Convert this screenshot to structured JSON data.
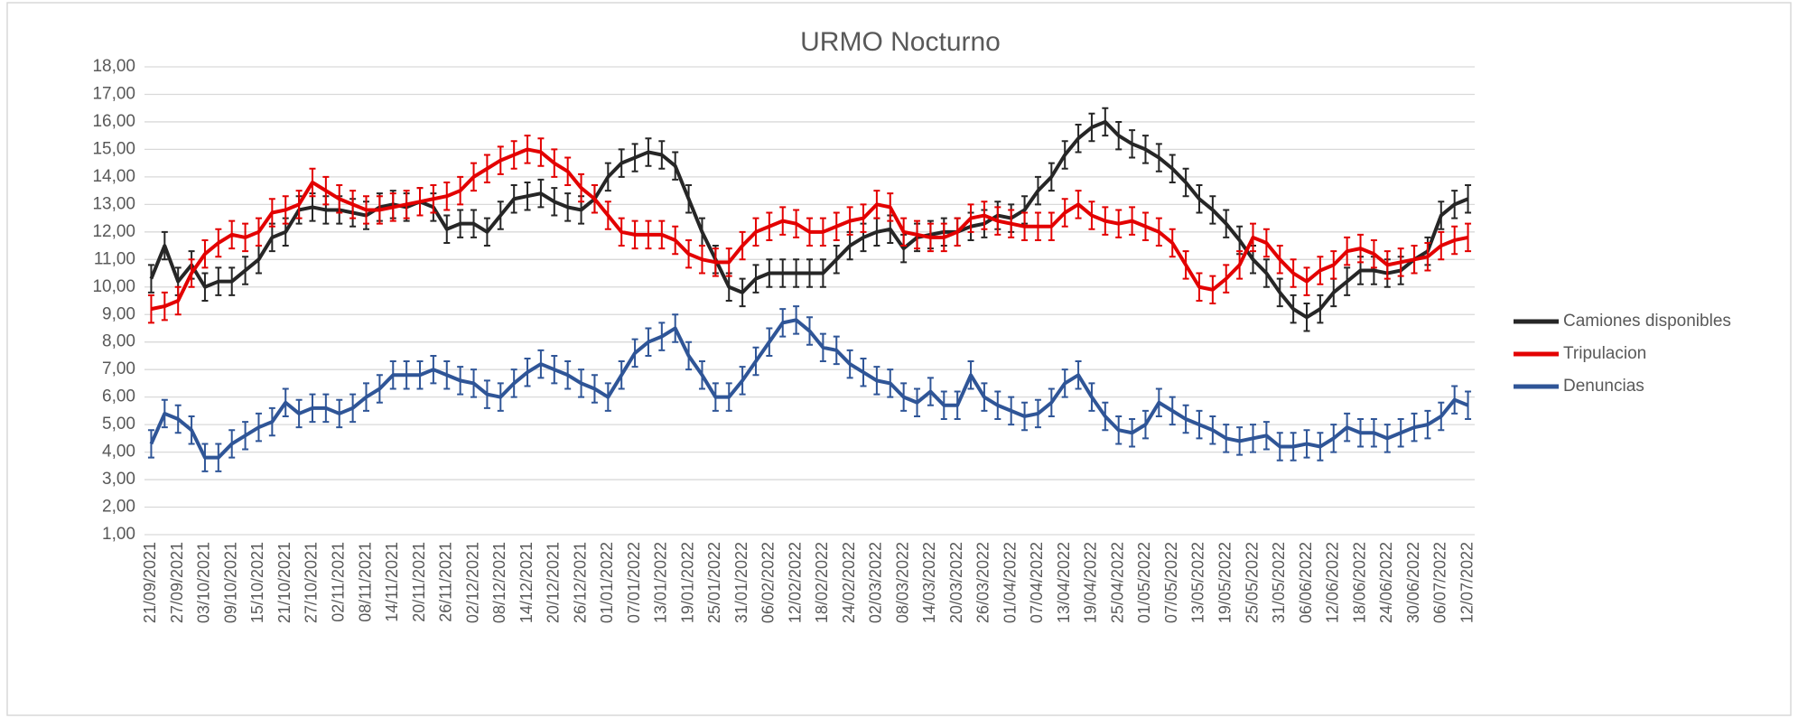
{
  "chart_data": {
    "type": "line",
    "title": "URMO Nocturno",
    "categories": [
      "21/09/2021",
      null,
      "27/09/2021",
      null,
      "03/10/2021",
      null,
      "09/10/2021",
      null,
      "15/10/2021",
      null,
      "21/10/2021",
      null,
      "27/10/2021",
      null,
      "02/11/2021",
      null,
      "08/11/2021",
      null,
      "14/11/2021",
      null,
      "20/11/2021",
      null,
      "26/11/2021",
      null,
      "02/12/2021",
      null,
      "08/12/2021",
      null,
      "14/12/2021",
      null,
      "20/12/2021",
      null,
      "26/12/2021",
      null,
      "01/01/2022",
      null,
      "07/01/2022",
      null,
      "13/01/2022",
      null,
      "19/01/2022",
      null,
      "25/01/2022",
      null,
      "31/01/2022",
      null,
      "06/02/2022",
      null,
      "12/02/2022",
      null,
      "18/02/2022",
      null,
      "24/02/2022",
      null,
      "02/03/2022",
      null,
      "08/03/2022",
      null,
      "14/03/2022",
      null,
      "20/03/2022",
      null,
      "26/03/2022",
      null,
      "01/04/2022",
      null,
      "07/04/2022",
      null,
      "13/04/2022",
      null,
      "19/04/2022",
      null,
      "25/04/2022",
      null,
      "01/05/2022",
      null,
      "07/05/2022",
      null,
      "13/05/2022",
      null,
      "19/05/2022",
      null,
      "25/05/2022",
      null,
      "31/05/2022",
      null,
      "06/06/2022",
      null,
      "12/06/2022",
      null,
      "18/06/2022",
      null,
      "24/06/2022",
      null,
      "30/06/2022",
      null,
      "06/07/2022",
      null,
      "12/07/2022"
    ],
    "series": [
      {
        "name": "Camiones disponibles",
        "color": "#262626",
        "error": 0.5,
        "values": [
          10.3,
          11.5,
          10.2,
          10.8,
          10.0,
          10.2,
          10.2,
          10.6,
          11.0,
          11.8,
          12.0,
          12.8,
          12.9,
          12.8,
          12.8,
          12.7,
          12.6,
          12.9,
          13.0,
          12.9,
          13.1,
          12.9,
          12.1,
          12.3,
          12.3,
          12.0,
          12.6,
          13.2,
          13.3,
          13.4,
          13.1,
          12.9,
          12.8,
          13.2,
          14.0,
          14.5,
          14.7,
          14.9,
          14.8,
          14.4,
          13.2,
          12.0,
          11.0,
          10.0,
          9.8,
          10.3,
          10.5,
          10.5,
          10.5,
          10.5,
          10.5,
          11.0,
          11.5,
          11.8,
          12.0,
          12.1,
          11.4,
          11.8,
          11.9,
          12.0,
          12.0,
          12.2,
          12.3,
          12.6,
          12.5,
          12.8,
          13.5,
          14.0,
          14.8,
          15.4,
          15.8,
          16.0,
          15.5,
          15.2,
          15.0,
          14.7,
          14.3,
          13.8,
          13.2,
          12.8,
          12.3,
          11.7,
          11.0,
          10.5,
          9.8,
          9.2,
          8.9,
          9.2,
          9.8,
          10.2,
          10.6,
          10.6,
          10.5,
          10.6,
          11.0,
          11.3,
          12.6,
          13.0,
          13.2
        ]
      },
      {
        "name": "Tripulacion",
        "color": "#e30000",
        "error": 0.5,
        "values": [
          9.2,
          9.3,
          9.5,
          10.5,
          11.2,
          11.6,
          11.9,
          11.8,
          12.0,
          12.7,
          12.8,
          13.0,
          13.8,
          13.5,
          13.2,
          13.0,
          12.8,
          12.8,
          12.9,
          13.0,
          13.1,
          13.2,
          13.3,
          13.5,
          14.0,
          14.3,
          14.6,
          14.8,
          15.0,
          14.9,
          14.5,
          14.2,
          13.6,
          13.2,
          12.6,
          12.0,
          11.9,
          11.9,
          11.9,
          11.7,
          11.2,
          11.0,
          10.9,
          10.9,
          11.5,
          12.0,
          12.2,
          12.4,
          12.3,
          12.0,
          12.0,
          12.2,
          12.4,
          12.5,
          13.0,
          12.9,
          12.0,
          11.9,
          11.8,
          11.8,
          12.0,
          12.5,
          12.6,
          12.4,
          12.3,
          12.2,
          12.2,
          12.2,
          12.7,
          13.0,
          12.6,
          12.4,
          12.3,
          12.4,
          12.2,
          12.0,
          11.6,
          10.8,
          10.0,
          9.9,
          10.3,
          10.8,
          11.8,
          11.6,
          11.0,
          10.5,
          10.2,
          10.6,
          10.8,
          11.3,
          11.4,
          11.2,
          10.8,
          10.9,
          11.0,
          11.1,
          11.5,
          11.7,
          11.8
        ]
      },
      {
        "name": "Denuncias",
        "color": "#2f5597",
        "error": 0.5,
        "values": [
          4.3,
          5.4,
          5.2,
          4.8,
          3.8,
          3.8,
          4.3,
          4.6,
          4.9,
          5.1,
          5.8,
          5.4,
          5.6,
          5.6,
          5.4,
          5.6,
          6.0,
          6.3,
          6.8,
          6.8,
          6.8,
          7.0,
          6.8,
          6.6,
          6.5,
          6.1,
          6.0,
          6.5,
          6.9,
          7.2,
          7.0,
          6.8,
          6.5,
          6.3,
          6.0,
          6.8,
          7.6,
          8.0,
          8.2,
          8.5,
          7.5,
          6.8,
          6.0,
          6.0,
          6.6,
          7.3,
          8.0,
          8.7,
          8.8,
          8.4,
          7.8,
          7.7,
          7.2,
          6.9,
          6.6,
          6.5,
          6.0,
          5.8,
          6.2,
          5.7,
          5.7,
          6.8,
          6.0,
          5.7,
          5.5,
          5.3,
          5.4,
          5.8,
          6.5,
          6.8,
          6.0,
          5.3,
          4.8,
          4.7,
          5.0,
          5.8,
          5.5,
          5.2,
          5.0,
          4.8,
          4.5,
          4.4,
          4.5,
          4.6,
          4.2,
          4.2,
          4.3,
          4.2,
          4.5,
          4.9,
          4.7,
          4.7,
          4.5,
          4.7,
          4.9,
          5.0,
          5.3,
          5.9,
          5.7
        ]
      }
    ],
    "ylim": [
      1,
      18
    ],
    "yticks": [
      {
        "value": 1,
        "label": "1,00"
      },
      {
        "value": 2,
        "label": "2,00"
      },
      {
        "value": 3,
        "label": "3,00"
      },
      {
        "value": 4,
        "label": "4,00"
      },
      {
        "value": 5,
        "label": "5,00"
      },
      {
        "value": 6,
        "label": "6,00"
      },
      {
        "value": 7,
        "label": "7,00"
      },
      {
        "value": 8,
        "label": "8,00"
      },
      {
        "value": 9,
        "label": "9,00"
      },
      {
        "value": 10,
        "label": "10,00"
      },
      {
        "value": 11,
        "label": "11,00"
      },
      {
        "value": 12,
        "label": "12,00"
      },
      {
        "value": 13,
        "label": "13,00"
      },
      {
        "value": 14,
        "label": "14,00"
      },
      {
        "value": 15,
        "label": "15,00"
      },
      {
        "value": 16,
        "label": "16,00"
      },
      {
        "value": 17,
        "label": "17,00"
      },
      {
        "value": 18,
        "label": "18,00"
      }
    ],
    "grid": true,
    "legend": "right"
  }
}
